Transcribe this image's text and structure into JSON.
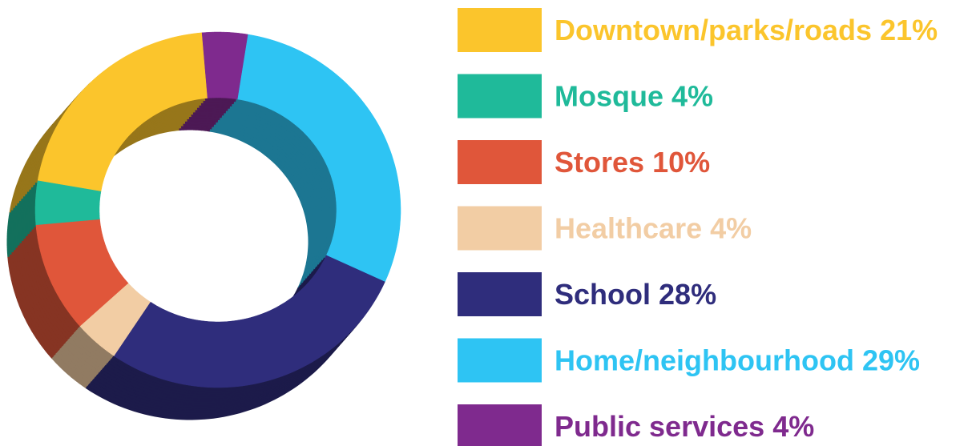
{
  "chart_data": {
    "type": "pie",
    "donut": true,
    "legend": "right",
    "categories": [
      "Downtown/parks/roads",
      "Mosque",
      "Stores",
      "Healthcare",
      "School",
      "Home/neighbourhood",
      "Public services"
    ],
    "values": [
      21,
      4,
      10,
      4,
      28,
      29,
      4
    ],
    "value_labels": [
      "21%",
      "4%",
      "10%",
      "4%",
      "28%",
      "29%",
      "4%"
    ],
    "colors": [
      "#fbc52c",
      "#1fba9a",
      "#e0563a",
      "#f2cda4",
      "#2f2d7c",
      "#2ec4f3",
      "#7f2a8e"
    ]
  }
}
